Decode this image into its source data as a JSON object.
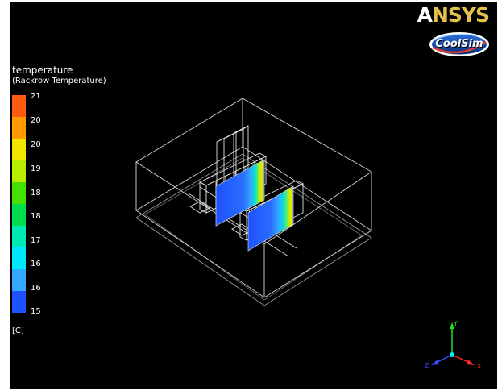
{
  "logos": {
    "ansys": "ANSYS",
    "coolsim": "CoolSim"
  },
  "legend": {
    "title": "temperature",
    "subtitle": "(Rackrow  Temperature)",
    "units": "[C]",
    "ticks": [
      "21",
      "20",
      "20",
      "19",
      "18",
      "18",
      "17",
      "16",
      "16",
      "15"
    ],
    "colors": [
      "#ff5a14",
      "#ff9a00",
      "#f2e600",
      "#b8ee00",
      "#46e000",
      "#00dc50",
      "#00e8b4",
      "#00e8ff",
      "#33a8ff",
      "#1e52ff"
    ]
  },
  "triad": {
    "x_label": "X",
    "y_label": "Y",
    "z_label": "Z",
    "x_color": "#ff2a2a",
    "y_color": "#22e022",
    "z_color": "#3a4aff"
  }
}
